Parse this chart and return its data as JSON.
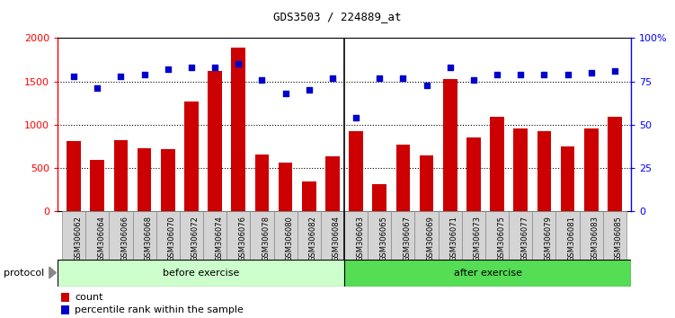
{
  "title": "GDS3503 / 224889_at",
  "categories": [
    "GSM306062",
    "GSM306064",
    "GSM306066",
    "GSM306068",
    "GSM306070",
    "GSM306072",
    "GSM306074",
    "GSM306076",
    "GSM306078",
    "GSM306080",
    "GSM306082",
    "GSM306084",
    "GSM306063",
    "GSM306065",
    "GSM306067",
    "GSM306069",
    "GSM306071",
    "GSM306073",
    "GSM306075",
    "GSM306077",
    "GSM306079",
    "GSM306081",
    "GSM306083",
    "GSM306085"
  ],
  "counts": [
    810,
    600,
    820,
    730,
    720,
    1270,
    1620,
    1890,
    660,
    560,
    350,
    640,
    930,
    320,
    770,
    650,
    1530,
    850,
    1090,
    960,
    930,
    750,
    960,
    1090
  ],
  "percentile_ranks": [
    78,
    71,
    78,
    79,
    82,
    83,
    83,
    85,
    76,
    68,
    70,
    77,
    54,
    77,
    77,
    73,
    83,
    76,
    79,
    79,
    79,
    79,
    80,
    81
  ],
  "before_exercise_count": 12,
  "after_exercise_count": 12,
  "bar_color": "#cc0000",
  "dot_color": "#0000cc",
  "ylim_left": [
    0,
    2000
  ],
  "ylim_right": [
    0,
    100
  ],
  "yticks_left": [
    0,
    500,
    1000,
    1500,
    2000
  ],
  "yticks_right": [
    0,
    25,
    50,
    75,
    100
  ],
  "ytick_labels_left": [
    "0",
    "500",
    "1000",
    "1500",
    "2000"
  ],
  "ytick_labels_right": [
    "0",
    "25",
    "50",
    "75",
    "100%"
  ],
  "grid_values": [
    500,
    1000,
    1500
  ],
  "before_color": "#ccffcc",
  "after_color": "#55dd55",
  "protocol_label": "protocol",
  "before_label": "before exercise",
  "after_label": "after exercise",
  "legend_count_label": "count",
  "legend_pct_label": "percentile rank within the sample",
  "bg_color": "#ffffff",
  "plot_bg_color": "#ffffff",
  "xtick_bg_color": "#d4d4d4",
  "xtick_border_color": "#888888"
}
